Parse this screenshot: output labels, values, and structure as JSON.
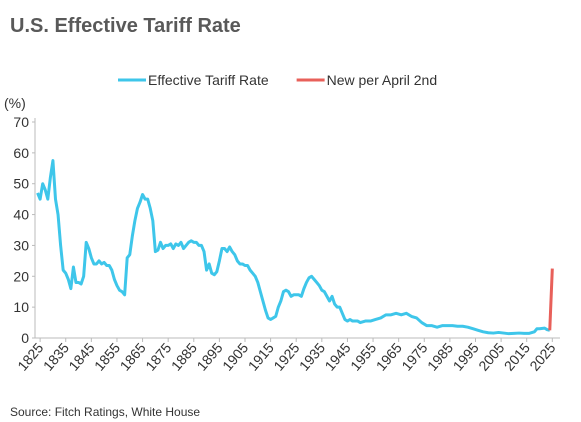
{
  "chart_data": {
    "type": "line",
    "title": "U.S. Effective Tariff Rate",
    "y_label": "(%)",
    "source": "Source: Fitch Ratings, White House",
    "xlim": [
      1823,
      2028
    ],
    "ylim": [
      0,
      70
    ],
    "xticks": [
      1825,
      1835,
      1845,
      1855,
      1865,
      1875,
      1885,
      1895,
      1905,
      1915,
      1925,
      1935,
      1945,
      1955,
      1965,
      1975,
      1985,
      1995,
      2005,
      2015,
      2025
    ],
    "yticks": [
      0,
      10,
      20,
      30,
      40,
      50,
      60,
      70
    ],
    "series": [
      {
        "name": "Effective Tariff Rate",
        "color": "#3ec6ea",
        "x": [
          1824,
          1825,
          1826,
          1827,
          1828,
          1829,
          1830,
          1831,
          1832,
          1833,
          1834,
          1835,
          1836,
          1837,
          1838,
          1839,
          1840,
          1841,
          1842,
          1843,
          1844,
          1845,
          1846,
          1847,
          1848,
          1849,
          1850,
          1851,
          1852,
          1853,
          1854,
          1855,
          1856,
          1857,
          1858,
          1859,
          1860,
          1861,
          1862,
          1863,
          1864,
          1865,
          1866,
          1867,
          1868,
          1869,
          1870,
          1871,
          1872,
          1873,
          1874,
          1875,
          1876,
          1877,
          1878,
          1879,
          1880,
          1881,
          1882,
          1883,
          1884,
          1885,
          1886,
          1887,
          1888,
          1889,
          1890,
          1891,
          1892,
          1893,
          1894,
          1895,
          1896,
          1897,
          1898,
          1899,
          1900,
          1901,
          1902,
          1903,
          1904,
          1905,
          1906,
          1907,
          1908,
          1909,
          1910,
          1911,
          1912,
          1913,
          1914,
          1915,
          1916,
          1917,
          1918,
          1919,
          1920,
          1921,
          1922,
          1923,
          1924,
          1925,
          1926,
          1927,
          1928,
          1929,
          1930,
          1931,
          1932,
          1933,
          1934,
          1935,
          1936,
          1937,
          1938,
          1939,
          1940,
          1941,
          1942,
          1943,
          1944,
          1945,
          1946,
          1947,
          1948,
          1949,
          1950,
          1952,
          1954,
          1956,
          1958,
          1960,
          1962,
          1964,
          1966,
          1968,
          1970,
          1972,
          1974,
          1976,
          1978,
          1980,
          1982,
          1984,
          1986,
          1988,
          1990,
          1992,
          1994,
          1996,
          1998,
          2000,
          2002,
          2004,
          2006,
          2008,
          2010,
          2012,
          2014,
          2016,
          2018,
          2019,
          2020,
          2022,
          2023,
          2024
        ],
        "values": [
          47,
          45,
          50,
          48,
          45,
          52,
          57.5,
          45,
          40,
          30,
          22,
          21,
          19,
          16,
          23,
          18,
          18,
          17.5,
          20,
          31,
          29,
          26,
          24,
          24,
          25,
          24,
          24.5,
          23.5,
          23.5,
          22,
          19,
          17,
          15.5,
          15,
          14,
          26,
          27,
          33,
          38,
          42,
          44,
          46.5,
          45,
          45,
          42,
          38,
          28,
          28.5,
          31,
          29,
          30,
          30,
          30.5,
          29,
          30.5,
          30,
          31,
          29,
          30,
          31,
          31.5,
          31,
          31,
          30,
          30,
          28,
          22,
          24,
          21,
          20.5,
          21.5,
          25,
          29,
          29,
          28,
          29.5,
          28,
          27,
          25,
          24,
          24,
          23.5,
          23.5,
          22,
          21,
          20,
          18,
          15,
          12,
          9,
          6.5,
          6,
          6.5,
          7,
          10,
          12,
          15,
          15.5,
          15,
          13.5,
          14,
          14,
          14,
          13.5,
          16,
          18,
          19.5,
          20,
          19,
          18,
          17,
          15.5,
          15,
          13.5,
          12,
          13.5,
          11,
          10,
          10,
          8,
          6,
          5.5,
          6,
          5.5,
          5.5,
          5.5,
          5,
          5.5,
          5.5,
          6,
          6.5,
          7.5,
          7.5,
          8,
          7.5,
          8,
          7,
          6.5,
          5,
          4,
          4,
          3.5,
          4,
          4,
          4,
          3.8,
          3.8,
          3.5,
          3,
          2.5,
          2,
          1.7,
          1.6,
          1.8,
          1.6,
          1.4,
          1.5,
          1.6,
          1.5,
          1.5,
          2,
          3,
          3,
          3.2,
          2.7,
          2.5
        ]
      },
      {
        "name": "New per April 2nd",
        "color": "#e8605a",
        "x": [
          2024,
          2025
        ],
        "values": [
          2.5,
          22.5
        ]
      }
    ]
  }
}
